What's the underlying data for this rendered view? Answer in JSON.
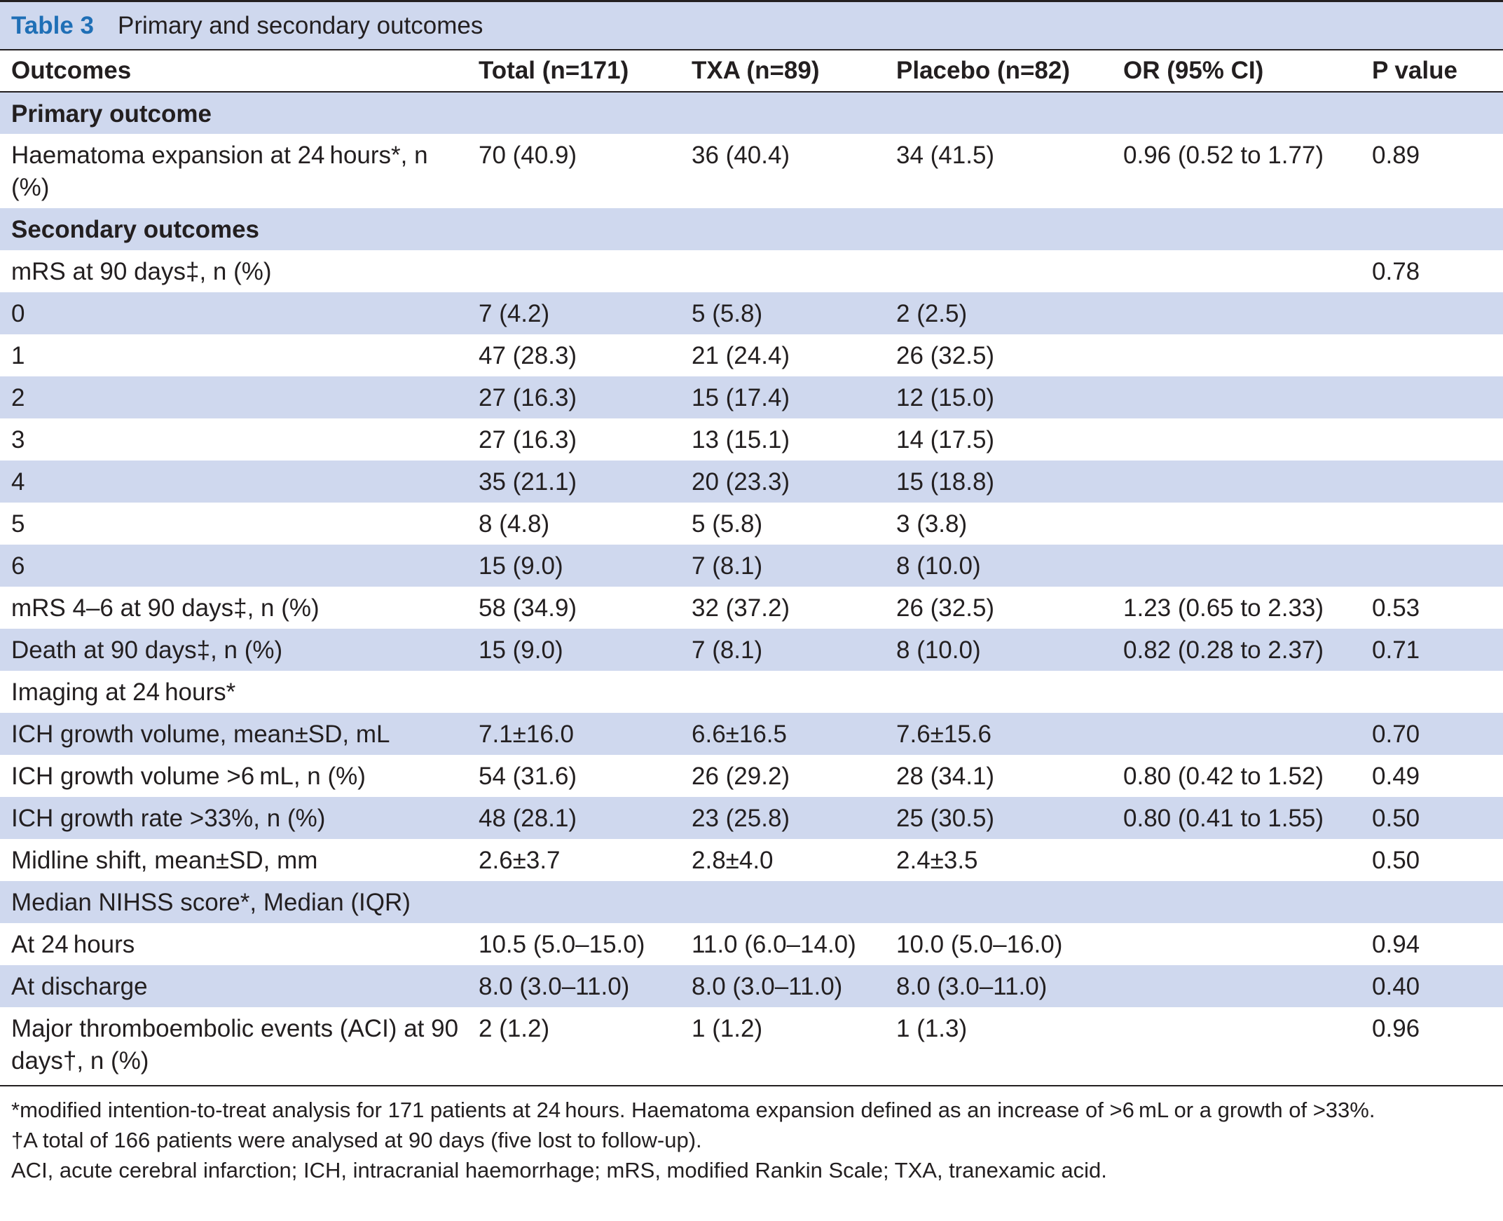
{
  "caption": {
    "label": "Table 3",
    "title": "Primary and secondary outcomes"
  },
  "headers": [
    "Outcomes",
    "Total (n=171)",
    "TXA (n=89)",
    "Placebo (n=82)",
    "OR (95% CI)",
    "P value"
  ],
  "rows": [
    {
      "cells": [
        "Primary outcome",
        "",
        "",
        "",
        "",
        ""
      ],
      "section": true
    },
    {
      "cells": [
        "Haematoma expansion at 24 hours*, n (%)",
        "70 (40.9)",
        "36 (40.4)",
        "34 (41.5)",
        "0.96 (0.52 to 1.77)",
        "0.89"
      ]
    },
    {
      "cells": [
        "Secondary outcomes",
        "",
        "",
        "",
        "",
        ""
      ],
      "section": true
    },
    {
      "cells": [
        "mRS at 90 days‡, n (%)",
        "",
        "",
        "",
        "",
        "0.78"
      ]
    },
    {
      "cells": [
        "0",
        "7 (4.2)",
        "5 (5.8)",
        "2 (2.5)",
        "",
        ""
      ]
    },
    {
      "cells": [
        "1",
        "47 (28.3)",
        "21 (24.4)",
        "26 (32.5)",
        "",
        ""
      ]
    },
    {
      "cells": [
        "2",
        "27 (16.3)",
        "15 (17.4)",
        "12 (15.0)",
        "",
        ""
      ]
    },
    {
      "cells": [
        "3",
        "27 (16.3)",
        "13 (15.1)",
        "14 (17.5)",
        "",
        ""
      ]
    },
    {
      "cells": [
        "4",
        "35 (21.1)",
        "20 (23.3)",
        "15 (18.8)",
        "",
        ""
      ]
    },
    {
      "cells": [
        "5",
        "8 (4.8)",
        "5 (5.8)",
        "3 (3.8)",
        "",
        ""
      ]
    },
    {
      "cells": [
        "6",
        "15 (9.0)",
        "7 (8.1)",
        "8 (10.0)",
        "",
        ""
      ]
    },
    {
      "cells": [
        "mRS 4–6 at 90 days‡, n (%)",
        "58 (34.9)",
        "32 (37.2)",
        "26 (32.5)",
        "1.23 (0.65 to 2.33)",
        "0.53"
      ]
    },
    {
      "cells": [
        "Death at 90 days‡, n (%)",
        "15 (9.0)",
        "7 (8.1)",
        "8 (10.0)",
        "0.82 (0.28 to 2.37)",
        "0.71"
      ]
    },
    {
      "cells": [
        "Imaging at 24 hours*",
        "",
        "",
        "",
        "",
        ""
      ]
    },
    {
      "cells": [
        "ICH growth volume, mean±SD, mL",
        "7.1±16.0",
        "6.6±16.5",
        "7.6±15.6",
        "",
        "0.70"
      ]
    },
    {
      "cells": [
        "ICH growth volume >6 mL, n (%)",
        "54 (31.6)",
        "26 (29.2)",
        "28 (34.1)",
        "0.80 (0.42 to 1.52)",
        "0.49"
      ]
    },
    {
      "cells": [
        "ICH growth rate >33%, n (%)",
        "48 (28.1)",
        "23 (25.8)",
        "25 (30.5)",
        "0.80 (0.41 to 1.55)",
        "0.50"
      ]
    },
    {
      "cells": [
        "Midline shift, mean±SD, mm",
        "2.6±3.7",
        "2.8±4.0",
        "2.4±3.5",
        "",
        "0.50"
      ]
    },
    {
      "cells": [
        "Median NIHSS score*, Median (IQR)",
        "",
        "",
        "",
        "",
        ""
      ]
    },
    {
      "cells": [
        "At 24 hours",
        "10.5 (5.0–15.0)",
        "11.0 (6.0–14.0)",
        "10.0 (5.0–16.0)",
        "",
        "0.94"
      ]
    },
    {
      "cells": [
        "At discharge",
        "8.0 (3.0–11.0)",
        "8.0 (3.0–11.0)",
        "8.0 (3.0–11.0)",
        "",
        "0.40"
      ]
    },
    {
      "cells": [
        "Major thromboembolic events (ACI) at 90 days†, n (%)",
        "2 (1.2)",
        "1 (1.2)",
        "1 (1.3)",
        "",
        "0.96"
      ]
    }
  ],
  "footnotes": [
    "*modified intention-to-treat analysis for 171 patients at 24 hours. Haematoma expansion defined as an increase of >6 mL or a growth of >33%.",
    "†A total of 166 patients were analysed at 90 days (five lost to follow-up).",
    "ACI, acute cerebral infarction; ICH, intracranial haemorrhage; mRS, modified Rankin Scale; TXA, tranexamic acid."
  ],
  "colors": {
    "caption_label": "#1f6fb6",
    "row_shade": "#cfd8ee",
    "text": "#231f20"
  }
}
